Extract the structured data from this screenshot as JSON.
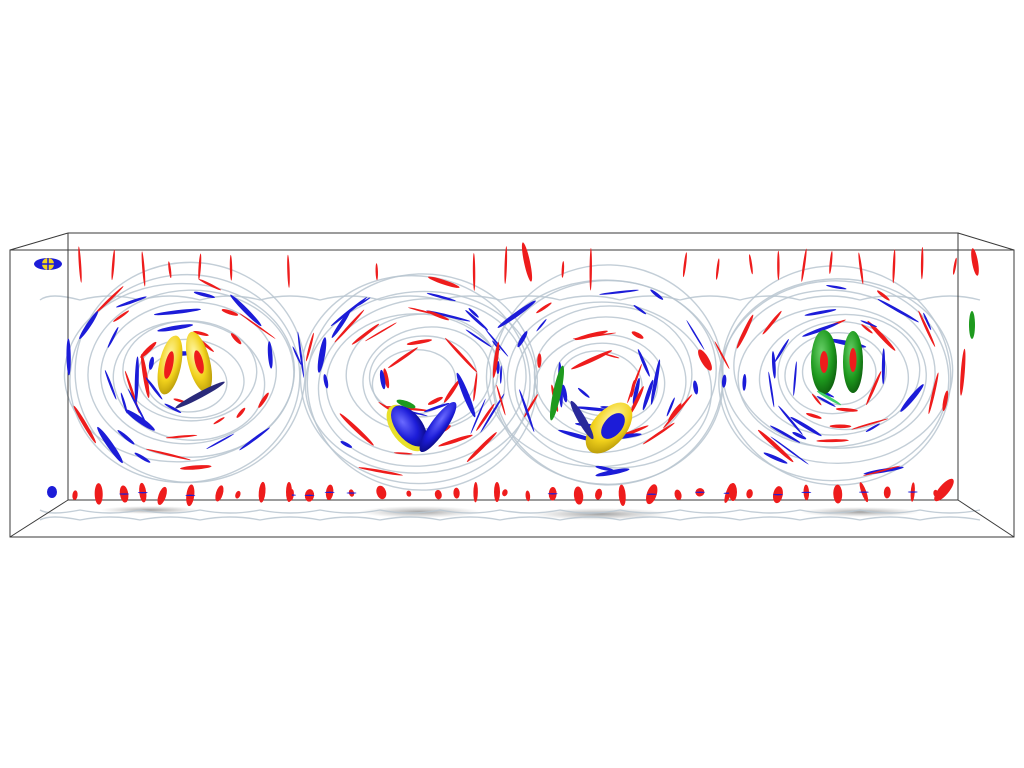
{
  "scene": {
    "palette": {
      "background": "#ffffff",
      "box_edge": "#3a3a3a",
      "streamline": "#b9c6d0",
      "glyph_red": "#ee1c1c",
      "glyph_blue": "#1c1cd8",
      "glyph_yellow": "#f2d21c",
      "glyph_green": "#1e9a1e",
      "shadow": "#9a9a9a"
    },
    "vortex_count": 4,
    "vortices": [
      {
        "rotation": "clockwise",
        "core_glyph_color": "#f2d21c"
      },
      {
        "rotation": "counterclockwise",
        "core_glyph_color": "#1c1cd8"
      },
      {
        "rotation": "clockwise",
        "core_glyph_color": "#f2d21c"
      },
      {
        "rotation": "counterclockwise",
        "core_glyph_color": "#1e9a1e"
      }
    ]
  }
}
